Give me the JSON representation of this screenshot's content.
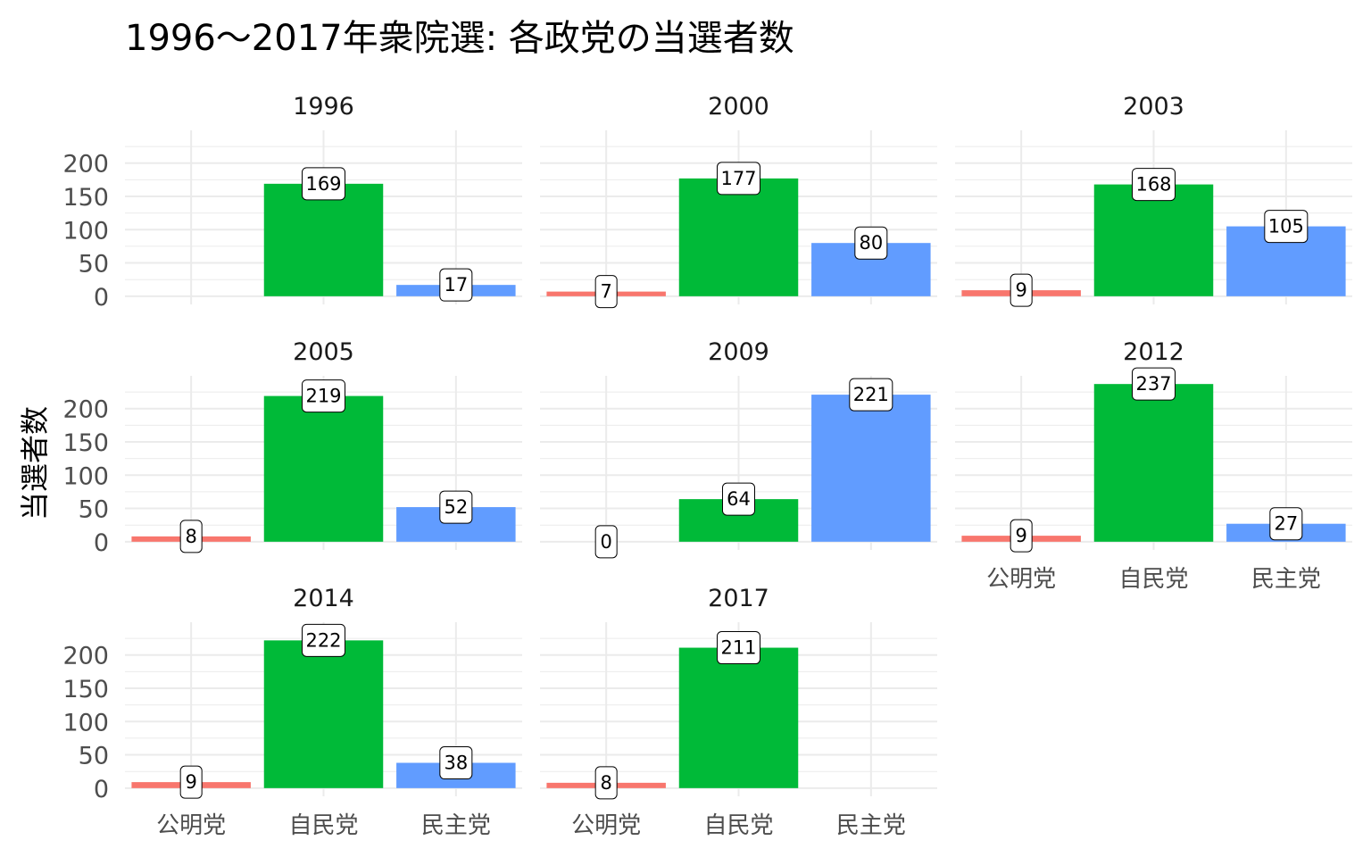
{
  "chart_data": {
    "type": "bar",
    "title": "1996～2017年衆院選: 各政党の当選者数",
    "xlabel": "",
    "ylabel": "当選者数",
    "ylim": [
      0,
      237
    ],
    "yticks": [
      0,
      50,
      100,
      150,
      200
    ],
    "grid": true,
    "legend": "none",
    "categories": [
      "公明党",
      "自民党",
      "民主党"
    ],
    "colors": {
      "公明党": "#F8766D",
      "自民党": "#00BA38",
      "民主党": "#619CFF"
    },
    "facets": [
      {
        "year": "1996",
        "values": [
          null,
          169,
          17
        ]
      },
      {
        "year": "2000",
        "values": [
          7,
          177,
          80
        ]
      },
      {
        "year": "2003",
        "values": [
          9,
          168,
          105
        ]
      },
      {
        "year": "2005",
        "values": [
          8,
          219,
          52
        ]
      },
      {
        "year": "2009",
        "values": [
          0,
          64,
          221
        ]
      },
      {
        "year": "2012",
        "values": [
          9,
          237,
          27
        ]
      },
      {
        "year": "2014",
        "values": [
          9,
          222,
          38
        ]
      },
      {
        "year": "2017",
        "values": [
          8,
          211,
          null
        ]
      }
    ]
  }
}
